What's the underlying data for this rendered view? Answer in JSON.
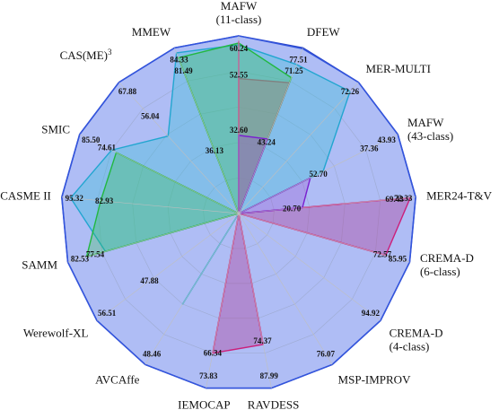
{
  "chart_data": {
    "type": "radar",
    "title": "",
    "grid": true,
    "axes": [
      {
        "lines": [
          "MAFW",
          "(11-class)"
        ],
        "max_label": "60.24"
      },
      {
        "lines": [
          "DFEW"
        ],
        "max_label": "77.51"
      },
      {
        "lines": [
          "MER-MULTI"
        ],
        "max_label": "72.26"
      },
      {
        "lines": [
          "MAFW",
          "(43-class)"
        ],
        "max_label": "43.93"
      },
      {
        "lines": [
          "MER24-T&V"
        ],
        "max_label": "72.33"
      },
      {
        "lines": [
          "CREMA-D",
          "(6-class)"
        ],
        "max_label": "85.95"
      },
      {
        "lines": [
          "CREMA-D",
          "(4-class)"
        ],
        "max_label": "94.92"
      },
      {
        "lines": [
          "MSP-IMPROV"
        ],
        "max_label": "76.07"
      },
      {
        "lines": [
          "RAVDESS"
        ],
        "max_label": "87.99"
      },
      {
        "lines": [
          "IEMOCAP"
        ],
        "max_label": "73.83"
      },
      {
        "lines": [
          "AVCAffe"
        ],
        "max_label": "48.46"
      },
      {
        "lines": [
          "Werewolf-XL"
        ],
        "max_label": "56.51"
      },
      {
        "lines": [
          "SAMM"
        ],
        "max_label": "82.53"
      },
      {
        "lines": [
          "CASME II"
        ],
        "max_label": "95.32"
      },
      {
        "lines": [
          "SMIC"
        ],
        "max_label": "85.50"
      },
      {
        "lines": [
          "CAS(ME)",
          "3"
        ],
        "max_label": "67.88"
      },
      {
        "lines": [
          "MMEW"
        ],
        "max_label": "84.33"
      }
    ],
    "series": [
      {
        "color": "#3355dd",
        "fill": "#4a73f0",
        "opacity": 0.32,
        "values": [
          1,
          0.995,
          1,
          1,
          1,
          1,
          1,
          1,
          1,
          1,
          1,
          1,
          1,
          1,
          1,
          1,
          1
        ]
      },
      {
        "color": "#22a6d0",
        "fill": "#35c0d6",
        "opacity": 0.35,
        "values": [
          0.95,
          0.9,
          0.93,
          0.53,
          0,
          0,
          0,
          0,
          0,
          0,
          0.6,
          0,
          0.78,
          0.95,
          0.8,
          0.59,
          0.97
        ]
      },
      {
        "color": "#22b840",
        "fill": "#33c44a",
        "opacity": 0.3,
        "values": [
          0.96,
          0.82,
          0,
          0,
          0,
          0,
          0,
          0,
          0,
          0,
          0,
          0,
          0.89,
          0.78,
          0.77,
          0,
          0.94
        ]
      },
      {
        "color": "#808080",
        "fill": "#909090",
        "opacity": 0.55,
        "values": [
          0.76,
          0.79,
          0,
          0,
          0,
          0,
          0,
          0,
          0,
          0,
          0,
          0,
          0,
          0,
          0,
          0,
          0
        ]
      },
      {
        "color": "#cc1f7a",
        "fill": "#b0409a",
        "opacity": 0.4,
        "values": [
          0.97,
          0,
          0,
          0,
          0.97,
          0.86,
          0,
          0,
          0.75,
          0.8,
          0,
          0,
          0,
          0,
          0,
          0,
          0
        ]
      },
      {
        "color": "#7a1fd0",
        "fill": "#9a4fd0",
        "opacity": 0.3,
        "values": [
          0.44,
          0.45,
          0,
          0.45,
          0.36,
          0,
          0,
          0,
          0,
          0,
          0,
          0,
          0,
          0,
          0,
          0,
          0
        ]
      }
    ],
    "inner_labels": [
      {
        "text": "52.55",
        "axis": 0,
        "r": 0.78
      },
      {
        "text": "32.60",
        "axis": 0,
        "r": 0.47
      },
      {
        "text": "43.24",
        "axis": 1,
        "r": 0.43
      },
      {
        "text": "71.25",
        "axis": 1,
        "r": 0.86
      },
      {
        "text": "52.70",
        "axis": 3,
        "r": 0.5
      },
      {
        "text": "37.36",
        "axis": 3,
        "r": 0.82
      },
      {
        "text": "20.70",
        "axis": 4,
        "r": 0.3
      },
      {
        "text": "69.43",
        "axis": 4,
        "r": 0.88
      },
      {
        "text": "72.57",
        "axis": 5,
        "r": 0.84
      },
      {
        "text": "74.37",
        "axis": 8,
        "r": 0.73
      },
      {
        "text": "66.34",
        "axis": 9,
        "r": 0.8
      },
      {
        "text": "47.88",
        "axis": 11,
        "r": 0.63
      },
      {
        "text": "77.54",
        "axis": 12,
        "r": 0.84
      },
      {
        "text": "82.93",
        "axis": 13,
        "r": 0.76
      },
      {
        "text": "74.61",
        "axis": 14,
        "r": 0.83
      },
      {
        "text": "56.04",
        "axis": 15,
        "r": 0.74
      },
      {
        "text": "36.13",
        "axis": 16,
        "r": 0.38
      },
      {
        "text": "81.49",
        "axis": 16,
        "r": 0.86
      }
    ]
  }
}
